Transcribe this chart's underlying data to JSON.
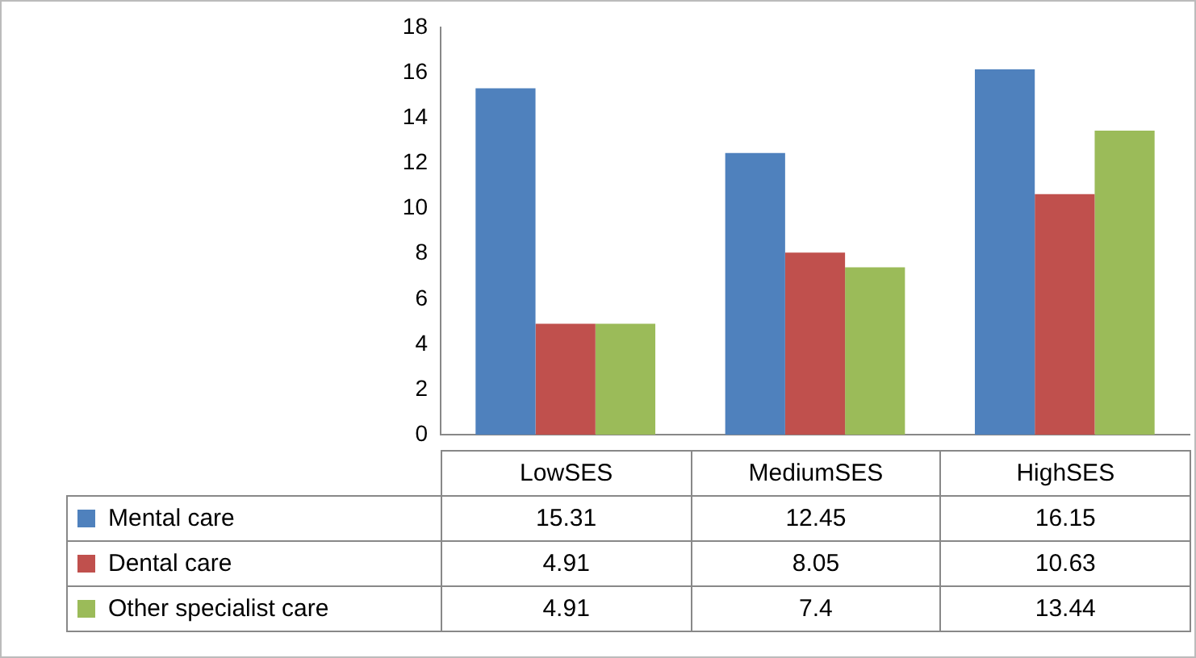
{
  "chart_data": {
    "type": "bar",
    "categories": [
      "LowSES",
      "MediumSES",
      "HighSES"
    ],
    "series": [
      {
        "name": "Mental care",
        "color": "#4f81bd",
        "values": [
          15.31,
          12.45,
          16.15
        ]
      },
      {
        "name": "Dental care",
        "color": "#c0504d",
        "values": [
          4.91,
          8.05,
          10.63
        ]
      },
      {
        "name": "Other specialist care",
        "color": "#9bbb59",
        "values": [
          4.91,
          7.4,
          13.44
        ]
      }
    ],
    "ylim": [
      0,
      18
    ],
    "yticks": [
      0,
      2,
      4,
      6,
      8,
      10,
      12,
      14,
      16,
      18
    ],
    "grid": false,
    "legend": "bottom left",
    "data_labels": true
  }
}
